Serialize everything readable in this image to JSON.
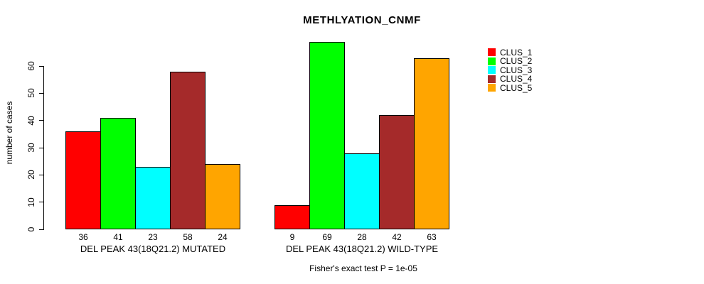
{
  "chart_data": {
    "type": "bar",
    "title": "METHLYATION_CNMF",
    "ylabel": "number of cases",
    "ylim": [
      0,
      69
    ],
    "yticks": [
      0,
      10,
      20,
      30,
      40,
      50,
      60
    ],
    "grid": false,
    "legend_position": "right-outside-top",
    "categories": [
      "DEL PEAK 43(18Q21.2) MUTATED",
      "DEL PEAK 43(18Q21.2) WILD-TYPE"
    ],
    "series": [
      {
        "name": "CLUS_1",
        "color": "#FF0000",
        "values": [
          36,
          9
        ]
      },
      {
        "name": "CLUS_2",
        "color": "#00FF00",
        "values": [
          41,
          69
        ]
      },
      {
        "name": "CLUS_3",
        "color": "#00FFFF",
        "values": [
          23,
          28
        ]
      },
      {
        "name": "CLUS_4",
        "color": "#A52A2A",
        "values": [
          58,
          42
        ]
      },
      {
        "name": "CLUS_5",
        "color": "#FFA500",
        "values": [
          24,
          63
        ]
      }
    ],
    "bar_value_labels_shown": true,
    "annotation": "Fisher's exact test P = 1e-05"
  },
  "colors": {
    "axis": "#000000",
    "bar_border": "#000000",
    "background": "#FFFFFF"
  }
}
